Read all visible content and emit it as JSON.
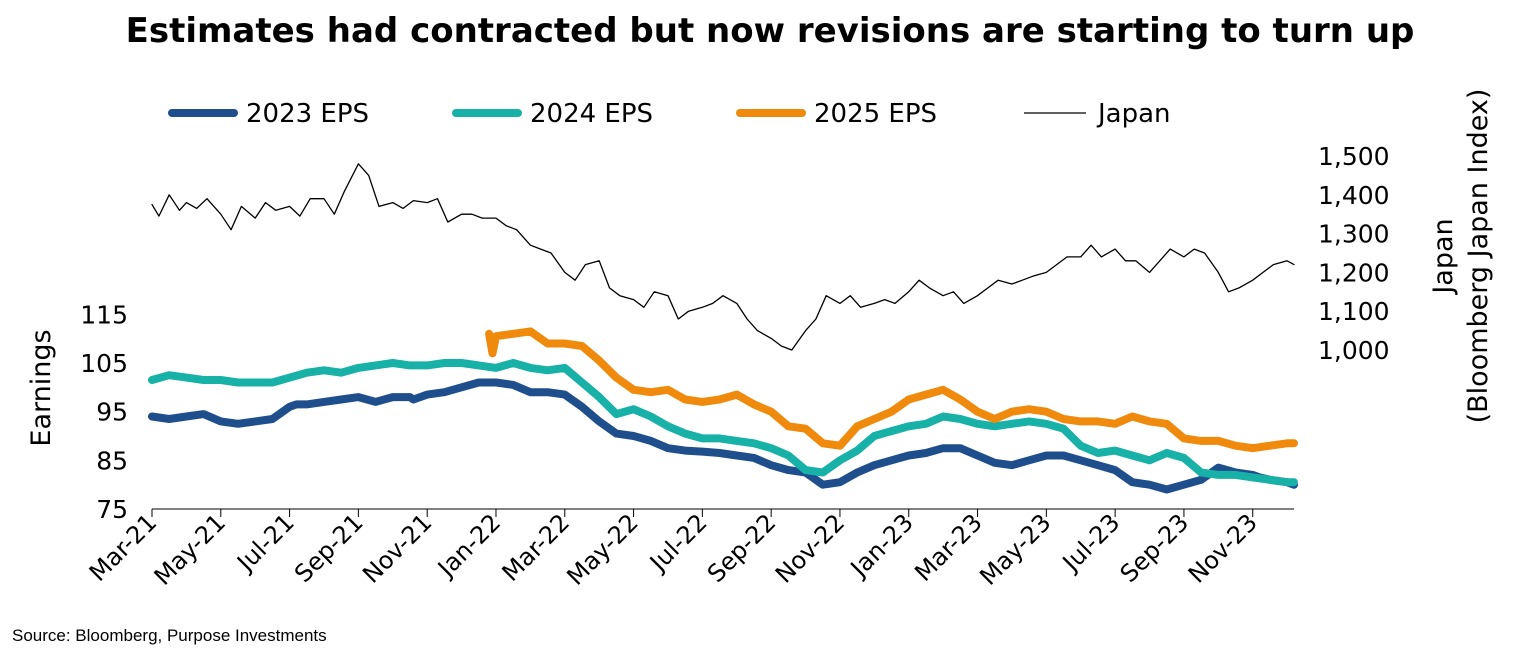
{
  "title": "Estimates had contracted but now revisions are starting to turn up",
  "source": "Source: Bloomberg, Purpose Investments",
  "chart_data": {
    "type": "line",
    "title": "Estimates had contracted but now revisions are starting to turn up",
    "xlabel": "",
    "ylabel": "Earnings",
    "y2label": "Japan (Bloomberg Japan Index)",
    "y2label_lines": [
      "Japan",
      "(Bloomberg Japan Index)"
    ],
    "ylim": [
      75,
      120
    ],
    "y_ticks": [
      75,
      85,
      95,
      105,
      115
    ],
    "y2lim": [
      1000,
      1500
    ],
    "y2_ticks": [
      1000,
      1100,
      1200,
      1300,
      1400,
      1500
    ],
    "y2_tick_labels": [
      "1,000",
      "1,100",
      "1,200",
      "1,300",
      "1,400",
      "1,500"
    ],
    "x_range_months": [
      0,
      33.2
    ],
    "x_ticks": [
      0,
      2,
      4,
      6,
      8,
      10,
      12,
      14,
      16,
      18,
      20,
      22,
      24,
      26,
      28,
      30,
      32
    ],
    "x_tick_labels": [
      "Mar-21",
      "May-21",
      "Jul-21",
      "Sep-21",
      "Nov-21",
      "Jan-22",
      "Mar-22",
      "May-22",
      "Jul-22",
      "Sep-22",
      "Nov-22",
      "Jan-23",
      "Mar-23",
      "May-23",
      "Jul-23",
      "Sep-23",
      "Nov-23"
    ],
    "legend_position": "top",
    "series": [
      {
        "name": "2023 EPS",
        "color": "#1f4e8c",
        "axis": "left",
        "width": 8,
        "x": [
          0,
          0.5,
          1,
          1.5,
          2,
          2.5,
          3,
          3.5,
          4,
          4.2,
          4.5,
          5,
          5.5,
          6,
          6.5,
          7,
          7.5,
          7.6,
          8,
          8.5,
          9,
          9.5,
          10,
          10.5,
          11,
          11.5,
          12,
          12.5,
          13,
          13.5,
          14,
          14.5,
          15,
          15.5,
          16,
          16.5,
          17,
          17.5,
          18,
          18.5,
          19,
          19.5,
          20,
          20.5,
          21,
          21.5,
          22,
          22.5,
          23,
          23.5,
          24,
          24.5,
          25,
          25.5,
          26,
          26.5,
          27,
          27.5,
          28,
          28.5,
          29,
          29.5,
          30,
          30.5,
          31,
          31.5,
          32,
          32.2,
          32.5,
          33,
          33.2
        ],
        "values": [
          94,
          93.5,
          94,
          94.5,
          93,
          92.5,
          93,
          93.5,
          96,
          96.5,
          96.5,
          97,
          97.5,
          98,
          97,
          98,
          98,
          97.5,
          98.5,
          99,
          100,
          101,
          101,
          100.5,
          99,
          99,
          98.5,
          96,
          93,
          90.5,
          90,
          89,
          87.5,
          87,
          86.8,
          86.5,
          86,
          85.5,
          84,
          83,
          82.5,
          80,
          80.5,
          82.5,
          84,
          85,
          86,
          86.5,
          87.5,
          87.5,
          86,
          84.5,
          84,
          85,
          86,
          86,
          85,
          84,
          83,
          80.5,
          80,
          79,
          80,
          81,
          83.5,
          82.5,
          82,
          81.5,
          81,
          80.5,
          80
        ]
      },
      {
        "name": "2024 EPS",
        "color": "#17b1a8",
        "axis": "left",
        "width": 8,
        "x": [
          0,
          0.5,
          1,
          1.5,
          2,
          2.5,
          3,
          3.5,
          4,
          4.5,
          5,
          5.5,
          6,
          6.5,
          7,
          7.5,
          8,
          8.5,
          9,
          9.5,
          10,
          10.5,
          11,
          11.5,
          12,
          12.5,
          13,
          13.5,
          14,
          14.5,
          15,
          15.5,
          16,
          16.5,
          17,
          17.5,
          18,
          18.5,
          19,
          19.5,
          20,
          20.5,
          21,
          21.5,
          22,
          22.5,
          23,
          23.5,
          24,
          24.5,
          25,
          25.5,
          26,
          26.5,
          27,
          27.5,
          28,
          28.5,
          29,
          29.5,
          30,
          30.5,
          31,
          31.5,
          32,
          32.5,
          33,
          33.2
        ],
        "values": [
          101.5,
          102.5,
          102,
          101.5,
          101.5,
          101,
          101,
          101,
          102,
          103,
          103.5,
          103,
          104,
          104.5,
          105,
          104.5,
          104.5,
          105,
          105,
          104.5,
          104,
          105,
          104,
          103.5,
          104,
          101,
          98,
          94.5,
          95.5,
          94,
          92,
          90.5,
          89.5,
          89.5,
          89,
          88.5,
          87.5,
          86,
          83,
          82.5,
          85,
          87,
          90,
          91,
          92,
          92.5,
          94,
          93.5,
          92.5,
          92,
          92.5,
          93,
          92.5,
          91.5,
          88,
          86.5,
          87,
          86,
          85,
          86.5,
          85.5,
          82.5,
          82,
          82,
          81.5,
          81,
          80.5,
          80.5
        ]
      },
      {
        "name": "2025 EPS",
        "color": "#f08a0c",
        "axis": "left",
        "width": 8,
        "x": [
          9.8,
          9.9,
          10,
          10.5,
          11,
          11.5,
          12,
          12.5,
          13,
          13.5,
          14,
          14.5,
          15,
          15.5,
          16,
          16.5,
          17,
          17.5,
          18,
          18.5,
          19,
          19.5,
          20,
          20.5,
          21,
          21.5,
          22,
          22.5,
          23,
          23.5,
          24,
          24.5,
          25,
          25.5,
          26,
          26.5,
          27,
          27.5,
          28,
          28.5,
          29,
          29.5,
          30,
          30.5,
          31,
          31.5,
          32,
          32.5,
          33,
          33.2
        ],
        "values": [
          111,
          107,
          110.5,
          111,
          111.5,
          109,
          109,
          108.5,
          105.5,
          102,
          99.5,
          99,
          99.5,
          97.5,
          97,
          97.5,
          98.5,
          96.5,
          95,
          92,
          91.5,
          88.5,
          88,
          92,
          93.5,
          95,
          97.5,
          98.5,
          99.5,
          97.5,
          95,
          93.5,
          95,
          95.5,
          95,
          93.5,
          93,
          93,
          92.5,
          94,
          93,
          92.5,
          89.5,
          89,
          89,
          88,
          87.5,
          88,
          88.5,
          88.5
        ]
      },
      {
        "name": "Japan",
        "color": "#000000",
        "axis": "right",
        "width": 1.3,
        "x": [
          0,
          0.2,
          0.5,
          0.8,
          1,
          1.3,
          1.6,
          2,
          2.3,
          2.6,
          3,
          3.3,
          3.6,
          4,
          4.3,
          4.6,
          5,
          5.3,
          5.6,
          6,
          6.3,
          6.6,
          7,
          7.3,
          7.6,
          8,
          8.3,
          8.6,
          9,
          9.3,
          9.6,
          10,
          10.3,
          10.6,
          11,
          11.3,
          11.6,
          12,
          12.3,
          12.6,
          13,
          13.3,
          13.6,
          14,
          14.3,
          14.6,
          15,
          15.3,
          15.6,
          16,
          16.3,
          16.6,
          17,
          17.3,
          17.6,
          18,
          18.3,
          18.6,
          19,
          19.3,
          19.6,
          20,
          20.3,
          20.6,
          21,
          21.3,
          21.6,
          22,
          22.3,
          22.6,
          23,
          23.3,
          23.6,
          24,
          24.3,
          24.6,
          25,
          25.3,
          25.6,
          26,
          26.3,
          26.6,
          27,
          27.3,
          27.6,
          28,
          28.3,
          28.6,
          29,
          29.3,
          29.6,
          30,
          30.3,
          30.6,
          31,
          31.3,
          31.6,
          32,
          32.3,
          32.6,
          33,
          33.2
        ],
        "values": [
          1375,
          1345,
          1400,
          1360,
          1380,
          1365,
          1390,
          1350,
          1310,
          1370,
          1340,
          1380,
          1360,
          1370,
          1345,
          1390,
          1390,
          1350,
          1410,
          1480,
          1450,
          1370,
          1380,
          1365,
          1385,
          1380,
          1390,
          1330,
          1350,
          1350,
          1340,
          1340,
          1320,
          1310,
          1270,
          1260,
          1250,
          1200,
          1180,
          1220,
          1230,
          1160,
          1140,
          1130,
          1110,
          1150,
          1140,
          1080,
          1100,
          1110,
          1120,
          1140,
          1120,
          1080,
          1050,
          1030,
          1010,
          1000,
          1050,
          1080,
          1140,
          1120,
          1140,
          1110,
          1120,
          1130,
          1120,
          1150,
          1180,
          1160,
          1140,
          1150,
          1120,
          1140,
          1160,
          1180,
          1170,
          1180,
          1190,
          1200,
          1220,
          1240,
          1240,
          1270,
          1240,
          1260,
          1230,
          1230,
          1200,
          1230,
          1260,
          1240,
          1260,
          1250,
          1200,
          1150,
          1160,
          1180,
          1200,
          1220,
          1230,
          1220
        ]
      }
    ]
  }
}
